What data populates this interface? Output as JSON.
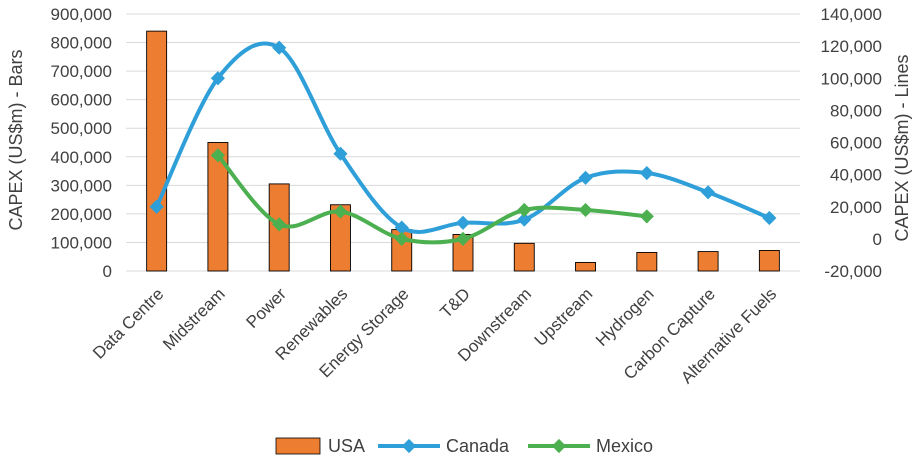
{
  "chart_data": {
    "type": "bar",
    "title": "",
    "categories": [
      "Data Centre",
      "Midstream",
      "Power",
      "Renewables",
      "Energy Storage",
      "T&D",
      "Downstream",
      "Upstream",
      "Hydrogen",
      "Carbon Capture",
      "Alternative Fuels"
    ],
    "bars": {
      "name": "USA",
      "axis": "left",
      "color": "#ED7D31",
      "values": [
        840000,
        450000,
        305000,
        232000,
        145000,
        128000,
        97000,
        30000,
        65000,
        68000,
        72000
      ]
    },
    "lines": [
      {
        "name": "Canada",
        "axis": "right",
        "color": "#2E9FD8",
        "values": [
          20000,
          100000,
          119000,
          53000,
          7000,
          10000,
          12000,
          38000,
          41000,
          29000,
          13000
        ]
      },
      {
        "name": "Mexico",
        "axis": "right",
        "color": "#4CAF50",
        "values": [
          null,
          52000,
          9000,
          17000,
          0,
          0,
          18000,
          18000,
          14000,
          null,
          null
        ]
      }
    ],
    "left_axis": {
      "label": "CAPEX (US$m) - Bars",
      "ylim": [
        0,
        900000
      ],
      "ticks": [
        "900,000",
        "800,000",
        "700,000",
        "600,000",
        "500,000",
        "400,000",
        "300,000",
        "200,000",
        "100,000",
        "0"
      ]
    },
    "right_axis": {
      "label": "CAPEX (US$m) - Lines",
      "ylim": [
        -20000,
        140000
      ],
      "ticks": [
        "140,000",
        "120,000",
        "100,000",
        "80,000",
        "60,000",
        "40,000",
        "20,000",
        "0",
        "-20,000"
      ]
    },
    "legend": {
      "position": "bottom",
      "entries": [
        "USA",
        "Canada",
        "Mexico"
      ]
    },
    "grid": true
  }
}
